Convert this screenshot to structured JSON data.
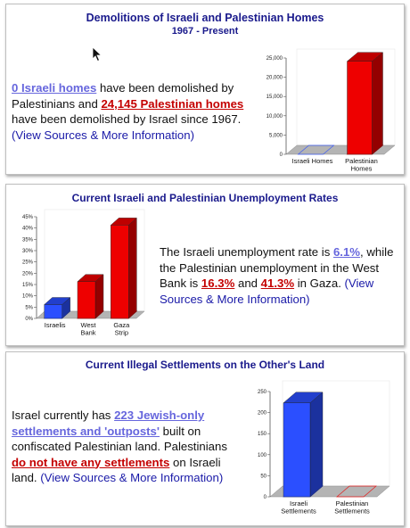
{
  "panel1": {
    "title": "Demolitions of Israeli and Palestinian Homes",
    "subtitle": "1967 - Present",
    "text": {
      "israeli_link": "0 Israeli homes",
      "part1": " have been demolished by Palestinians and ",
      "palestinian_link": "24,145 Palestinian homes",
      "part2": " have been demolished by Israel since 1967.",
      "source_link": "(View Sources & More Information)"
    }
  },
  "panel2": {
    "title": "Current Israeli and Palestinian Unemployment Rates",
    "text": {
      "part1": "The Israeli unemployment rate is ",
      "israeli_rate": "6.1%",
      "part2": ", while the Palestinian unemployment in the West Bank is ",
      "westbank_rate": "16.3%",
      "part3": " and ",
      "gaza_rate": "41.3%",
      "part4": " in Gaza. ",
      "source_link": "(View Sources & More Information)"
    }
  },
  "panel3": {
    "title": "Current Illegal Settlements on the Other's Land",
    "text": {
      "part1": "Israel currently has ",
      "settlements_link": "223 Jewish-only settlements and 'outposts'",
      "part2": " built on confiscated Palestinian land. Palestinians ",
      "none_link": "do not have any settlements",
      "part3": " on Israeli land. ",
      "source_link": "(View Sources & More Information)"
    }
  },
  "colors": {
    "title": "#1a1a8c",
    "israeli_bar": "#2b4fff",
    "palestinian_bar": "#ee0000",
    "floor": "#b4b4b4"
  },
  "chart_data": [
    {
      "type": "bar",
      "categories": [
        "Israeli Homes",
        "Palestinian Homes"
      ],
      "category_lines": [
        [
          "Israeli Homes"
        ],
        [
          "Palestinian",
          "Homes"
        ]
      ],
      "values": [
        0,
        24145
      ],
      "ylim": [
        0,
        25000
      ],
      "yticks": [
        0,
        5000,
        10000,
        15000,
        20000,
        25000
      ],
      "ytick_labels": [
        "0",
        "5,000",
        "10,000",
        "15,000",
        "20,000",
        "25,000"
      ],
      "colors": [
        "#2b4fff",
        "#ee0000"
      ],
      "xlabel": "",
      "ylabel": "",
      "title": ""
    },
    {
      "type": "bar",
      "categories": [
        "Israelis",
        "West Bank",
        "Gaza Strip"
      ],
      "category_lines": [
        [
          "Israelis"
        ],
        [
          "West",
          "Bank"
        ],
        [
          "Gaza",
          "Strip"
        ]
      ],
      "values": [
        6.1,
        16.3,
        41.3
      ],
      "ylim": [
        0,
        45
      ],
      "yticks": [
        0,
        5,
        10,
        15,
        20,
        25,
        30,
        35,
        40,
        45
      ],
      "ytick_labels": [
        "0%",
        "5%",
        "10%",
        "15%",
        "20%",
        "25%",
        "30%",
        "35%",
        "40%",
        "45%"
      ],
      "colors": [
        "#2b4fff",
        "#ee0000",
        "#ee0000"
      ],
      "xlabel": "",
      "ylabel": "",
      "title": ""
    },
    {
      "type": "bar",
      "categories": [
        "Israeli Settlements",
        "Palestinian Settlements"
      ],
      "category_lines": [
        [
          "Israeli",
          "Settlements"
        ],
        [
          "Palestinian",
          "Settlements"
        ]
      ],
      "values": [
        223,
        0
      ],
      "ylim": [
        0,
        250
      ],
      "yticks": [
        0,
        50,
        100,
        150,
        200,
        250
      ],
      "ytick_labels": [
        "0",
        "50",
        "100",
        "150",
        "200",
        "250"
      ],
      "colors": [
        "#2b4fff",
        "#ee0000"
      ],
      "xlabel": "",
      "ylabel": "",
      "title": ""
    }
  ]
}
